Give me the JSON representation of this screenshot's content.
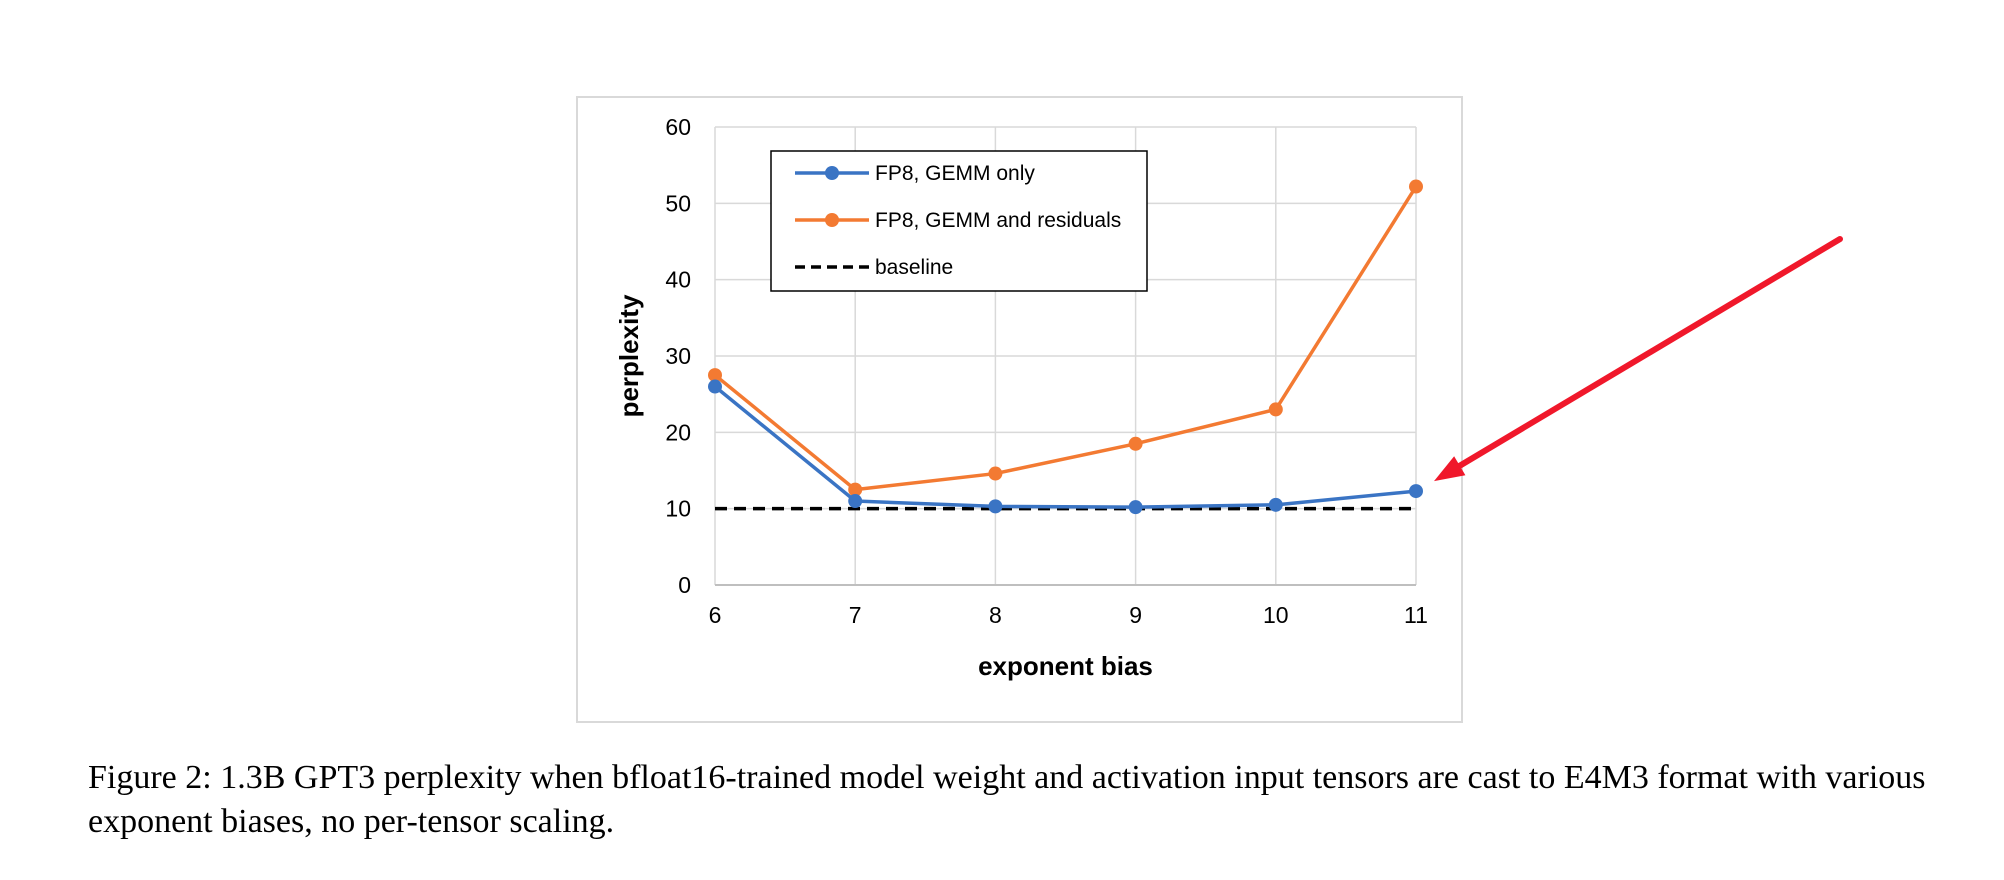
{
  "chart_data": {
    "type": "line",
    "x": [
      6,
      7,
      8,
      9,
      10,
      11
    ],
    "xlabel": "exponent bias",
    "ylabel": "perplexity",
    "xticks": [
      "6",
      "7",
      "8",
      "9",
      "10",
      "11"
    ],
    "yticks": [
      "0",
      "10",
      "20",
      "30",
      "40",
      "50",
      "60"
    ],
    "ylim": [
      0,
      60
    ],
    "grid": true,
    "legend": "top-left",
    "series": [
      {
        "name": "FP8, GEMM only",
        "color": "#3A74C4",
        "style": "solid-markers",
        "values": [
          26.0,
          11.0,
          10.3,
          10.2,
          10.5,
          12.3
        ]
      },
      {
        "name": "FP8, GEMM and residuals",
        "color": "#F37A32",
        "style": "solid-markers",
        "values": [
          27.5,
          12.5,
          14.6,
          18.5,
          23.0,
          52.2
        ]
      },
      {
        "name": "baseline",
        "color": "#000000",
        "style": "dashed",
        "values": [
          10.0,
          10.0,
          10.0,
          10.0,
          10.0,
          10.0
        ]
      }
    ],
    "annotations": [
      {
        "type": "arrow",
        "color": "#F0182B",
        "points_to": {
          "x": 11,
          "y": 12.3
        }
      }
    ]
  },
  "caption": "Figure 2: 1.3B GPT3 perplexity when bfloat16-trained model weight and activation input tensors are cast to E4M3 format with various exponent biases, no per-tensor scaling."
}
